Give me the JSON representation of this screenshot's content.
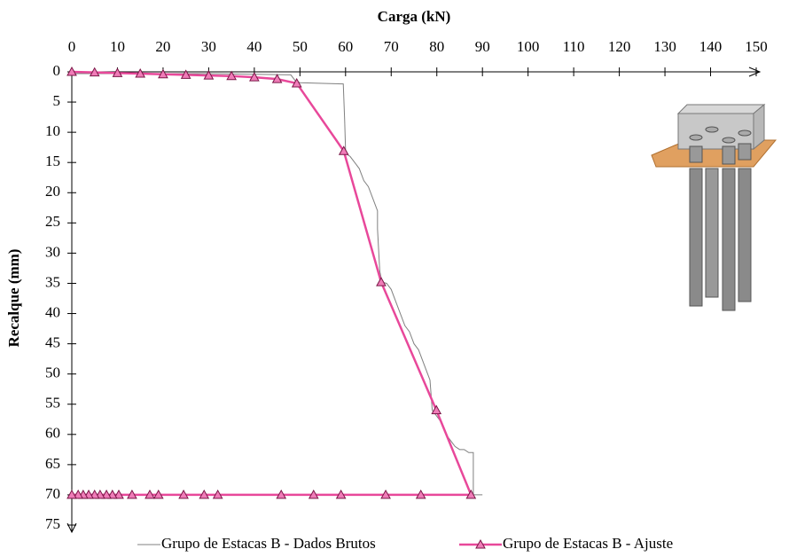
{
  "chart_data": {
    "type": "line",
    "x_label": "Carga (kN)",
    "y_label": "Recalque (mm)",
    "xlim": [
      0,
      150
    ],
    "xticks": [
      0,
      10,
      20,
      30,
      40,
      50,
      60,
      70,
      80,
      90,
      100,
      110,
      120,
      130,
      140,
      150
    ],
    "ylim": [
      0,
      75
    ],
    "yticks": [
      0,
      5,
      10,
      15,
      20,
      25,
      30,
      35,
      40,
      45,
      50,
      55,
      60,
      65,
      70,
      75
    ],
    "y_inverted": true,
    "x_axis_top": true,
    "series": [
      {
        "name": "Grupo de Estacas B - Dados Brutos",
        "color": "#808080",
        "marker": null,
        "x": [
          0,
          10,
          20,
          30,
          40,
          48,
          49,
          50,
          55,
          59.5,
          59.8,
          60,
          60,
          61,
          62,
          63,
          64,
          65,
          66,
          67,
          67,
          67.5,
          68,
          69,
          70,
          71,
          72,
          73,
          74,
          75,
          76,
          77,
          78,
          78.5,
          79,
          80,
          81,
          82,
          83,
          84,
          85,
          86,
          87,
          88,
          88,
          90
        ],
        "values": [
          0.3,
          0.3,
          0.3,
          0.3,
          0.4,
          0.5,
          1.5,
          1.8,
          1.9,
          2,
          8,
          13,
          13.5,
          14,
          15,
          16,
          18,
          19,
          21,
          23,
          26,
          33,
          34.8,
          35,
          36,
          38,
          40,
          42,
          43,
          45,
          46,
          48,
          50,
          51,
          56,
          57,
          58,
          60,
          61,
          62,
          62.5,
          62.5,
          63,
          63,
          70,
          70
        ]
      },
      {
        "name": "Grupo de Estacas B - Ajuste",
        "color": "#e8489a",
        "marker": "triangle",
        "x": [
          0,
          5,
          10,
          15,
          20,
          25,
          30,
          35,
          40,
          45,
          49.3,
          59.6,
          67.8,
          79.9,
          87.5,
          76.5,
          68.8,
          59,
          53,
          45.9,
          32,
          29,
          24.5,
          19,
          17.1,
          13.2,
          10.3,
          8.9,
          7.6,
          6.2,
          5,
          3.7,
          2.5,
          1.4,
          0
        ],
        "values": [
          0,
          0.1,
          0.2,
          0.3,
          0.4,
          0.5,
          0.6,
          0.7,
          0.9,
          1.2,
          1.9,
          13.1,
          34.8,
          56,
          70,
          70,
          70,
          70,
          70,
          70,
          70,
          70,
          70,
          70,
          70,
          70,
          70,
          70,
          70,
          70,
          70,
          70,
          70,
          70,
          70
        ]
      }
    ]
  }
}
